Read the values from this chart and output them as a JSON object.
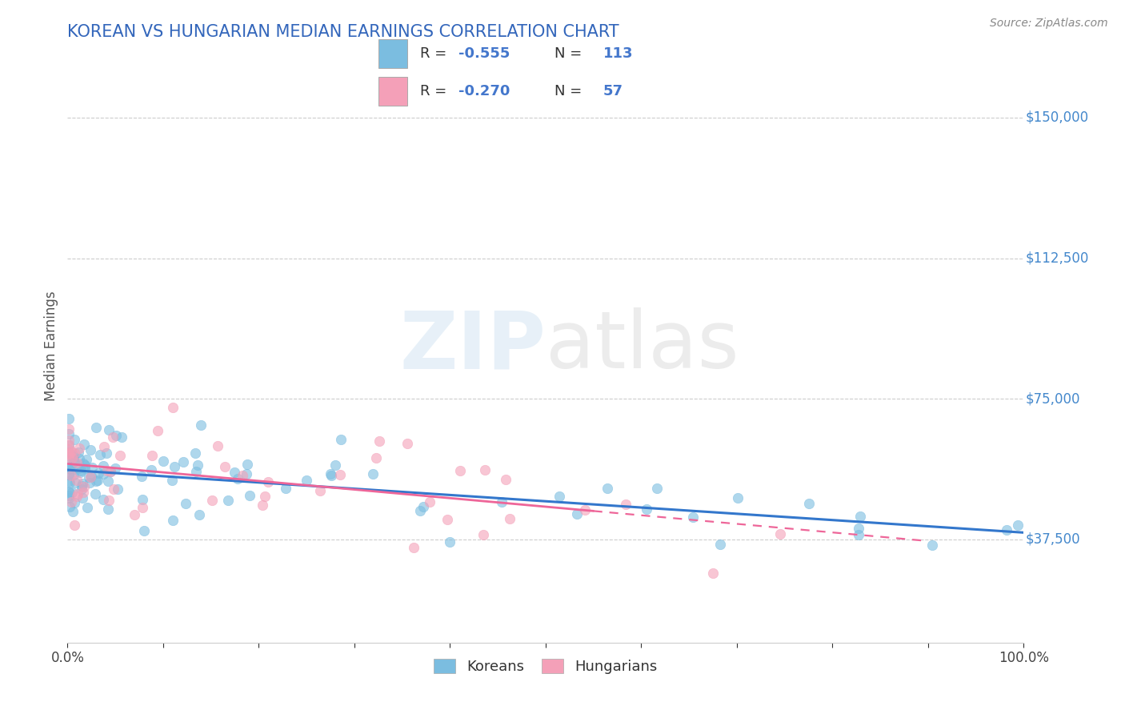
{
  "title": "KOREAN VS HUNGARIAN MEDIAN EARNINGS CORRELATION CHART",
  "source_text": "Source: ZipAtlas.com",
  "ylabel": "Median Earnings",
  "yticks": [
    37500,
    75000,
    112500,
    150000
  ],
  "ytick_labels": [
    "$37,500",
    "$75,000",
    "$112,500",
    "$150,000"
  ],
  "ymin": 10000,
  "ymax": 168000,
  "xmin": 0,
  "xmax": 1.0,
  "korean_color": "#7bbde0",
  "hungarian_color": "#f4a0b8",
  "korean_R": -0.555,
  "korean_N": 113,
  "hungarian_R": -0.27,
  "hungarian_N": 57,
  "title_color": "#3366bb",
  "ytick_color": "#4488cc",
  "grid_color": "#cccccc",
  "legend_label_korean": "Koreans",
  "legend_label_hungarian": "Hungarians",
  "korean_line_color": "#3377cc",
  "hungarian_line_color": "#ee6699",
  "r_n_color": "#4477cc",
  "label_color": "#333333"
}
